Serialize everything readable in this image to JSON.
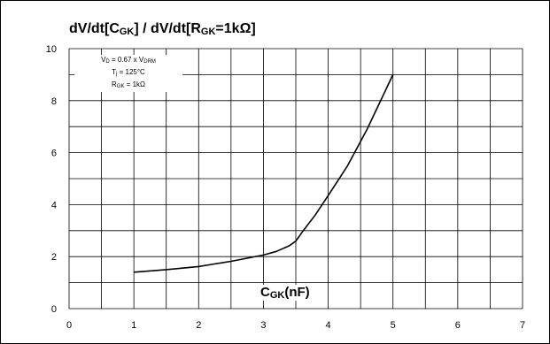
{
  "chart_data": {
    "type": "line",
    "title": {
      "p1": "dV/dt[C",
      "p1_sub": "GK",
      "p2": "] / dV/dt[R",
      "p2_sub": "GK",
      "p3": "=1kΩ]"
    },
    "xlabel": {
      "main": "C",
      "sub": "GK",
      "unit": "(nF)"
    },
    "conditions": {
      "line1": {
        "a": "V",
        "a_sub": "D",
        "b": " = 0.67 x V",
        "b_sub": "DRM"
      },
      "line2": {
        "a": "T",
        "a_sub": "j",
        "b": " = 125°C"
      },
      "line3": {
        "a": "R",
        "a_sub": "GK",
        "b": " = 1kΩ"
      }
    },
    "xlim": [
      0,
      7
    ],
    "ylim": [
      0,
      10
    ],
    "x_ticks": [
      "0",
      "1",
      "2",
      "3",
      "4",
      "5",
      "6",
      "7"
    ],
    "y_ticks": [
      "0",
      "2",
      "4",
      "6",
      "8",
      "10"
    ],
    "grid": true,
    "series": [
      {
        "x": [
          1.0,
          1.5,
          2.0,
          2.2,
          2.5,
          3.0,
          3.2,
          3.4,
          3.5,
          3.6,
          3.8,
          4.0,
          4.3,
          4.6,
          5.0
        ],
        "y": [
          1.4,
          1.5,
          1.62,
          1.7,
          1.82,
          2.06,
          2.2,
          2.42,
          2.6,
          2.95,
          3.6,
          4.35,
          5.5,
          6.9,
          9.0
        ]
      }
    ]
  }
}
